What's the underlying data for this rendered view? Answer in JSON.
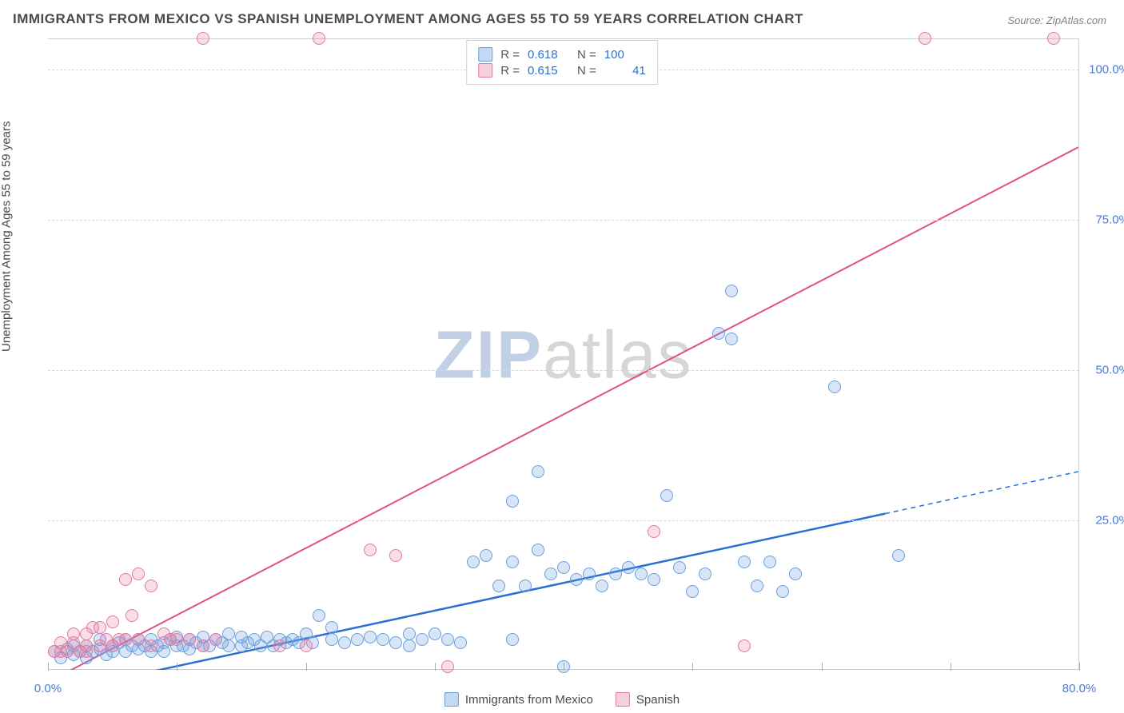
{
  "title": "IMMIGRANTS FROM MEXICO VS SPANISH UNEMPLOYMENT AMONG AGES 55 TO 59 YEARS CORRELATION CHART",
  "source_label": "Source:",
  "source_value": "ZipAtlas.com",
  "ylabel": "Unemployment Among Ages 55 to 59 years",
  "watermark_bold": "ZIP",
  "watermark_light": "atlas",
  "chart": {
    "type": "scatter",
    "background_color": "#ffffff",
    "grid_color": "#d8d8d8",
    "border_color": "#d0d0d0",
    "xlim": [
      0,
      80
    ],
    "ylim": [
      0,
      105
    ],
    "xticks": [
      0,
      10,
      20,
      30,
      40,
      50,
      60,
      70,
      80
    ],
    "xtick_labels": {
      "0": "0.0%",
      "80": "80.0%"
    },
    "yticks": [
      25,
      50,
      75,
      100
    ],
    "ytick_labels": {
      "25": "25.0%",
      "50": "50.0%",
      "75": "75.0%",
      "100": "100.0%"
    },
    "axis_label_fontsize": 15,
    "tick_label_color": "#4a7bd0",
    "series": [
      {
        "name": "Immigrants from Mexico",
        "color_fill": "rgba(110,160,225,0.28)",
        "color_stroke": "#6a9edb",
        "marker_size": 16,
        "R": "0.618",
        "N": "100",
        "trend": {
          "x1": 0,
          "y1": -4,
          "x2": 65,
          "y2": 26,
          "x2_ext": 80,
          "y2_ext": 33,
          "color": "#2b6fd4",
          "width": 2.5,
          "dash_tail": true
        },
        "points": [
          [
            0.5,
            3
          ],
          [
            1,
            2
          ],
          [
            1.5,
            3.5
          ],
          [
            2,
            2.5
          ],
          [
            2,
            4
          ],
          [
            2.5,
            3
          ],
          [
            3,
            2
          ],
          [
            3,
            4
          ],
          [
            3.5,
            3
          ],
          [
            4,
            3.5
          ],
          [
            4,
            5
          ],
          [
            4.5,
            2.5
          ],
          [
            5,
            4
          ],
          [
            5,
            3
          ],
          [
            5.5,
            4.5
          ],
          [
            6,
            3
          ],
          [
            6,
            5
          ],
          [
            6.5,
            4
          ],
          [
            7,
            3.5
          ],
          [
            7,
            5
          ],
          [
            7.5,
            4
          ],
          [
            8,
            3
          ],
          [
            8,
            5
          ],
          [
            8.5,
            4
          ],
          [
            9,
            4.5
          ],
          [
            9,
            3
          ],
          [
            9.5,
            5
          ],
          [
            10,
            4
          ],
          [
            10,
            5.5
          ],
          [
            10.5,
            4
          ],
          [
            11,
            3.5
          ],
          [
            11,
            5
          ],
          [
            11.5,
            4.5
          ],
          [
            12,
            4
          ],
          [
            12,
            5.5
          ],
          [
            12.5,
            4
          ],
          [
            13,
            5
          ],
          [
            13.5,
            4.5
          ],
          [
            14,
            4
          ],
          [
            14,
            6
          ],
          [
            15,
            4
          ],
          [
            15,
            5.5
          ],
          [
            15.5,
            4.5
          ],
          [
            16,
            5
          ],
          [
            16.5,
            4
          ],
          [
            17,
            5.5
          ],
          [
            17.5,
            4
          ],
          [
            18,
            5
          ],
          [
            18.5,
            4.5
          ],
          [
            19,
            5
          ],
          [
            19.5,
            4.5
          ],
          [
            20,
            6
          ],
          [
            20.5,
            4.5
          ],
          [
            21,
            9
          ],
          [
            22,
            5
          ],
          [
            22,
            7
          ],
          [
            23,
            4.5
          ],
          [
            24,
            5
          ],
          [
            25,
            5.5
          ],
          [
            26,
            5
          ],
          [
            27,
            4.5
          ],
          [
            28,
            6
          ],
          [
            28,
            4
          ],
          [
            29,
            5
          ],
          [
            30,
            6
          ],
          [
            31,
            5
          ],
          [
            32,
            4.5
          ],
          [
            33,
            18
          ],
          [
            34,
            19
          ],
          [
            35,
            14
          ],
          [
            36,
            18
          ],
          [
            36,
            28
          ],
          [
            36,
            5
          ],
          [
            37,
            14
          ],
          [
            38,
            20
          ],
          [
            38,
            33
          ],
          [
            39,
            16
          ],
          [
            40,
            17
          ],
          [
            40,
            0.5
          ],
          [
            41,
            15
          ],
          [
            42,
            16
          ],
          [
            43,
            14
          ],
          [
            44,
            16
          ],
          [
            45,
            17
          ],
          [
            46,
            16
          ],
          [
            47,
            15
          ],
          [
            48,
            29
          ],
          [
            49,
            17
          ],
          [
            50,
            13
          ],
          [
            51,
            16
          ],
          [
            52,
            56
          ],
          [
            53,
            55
          ],
          [
            53,
            63
          ],
          [
            54,
            18
          ],
          [
            55,
            14
          ],
          [
            56,
            18
          ],
          [
            57,
            13
          ],
          [
            58,
            16
          ],
          [
            61,
            47
          ],
          [
            66,
            19
          ]
        ]
      },
      {
        "name": "Spanish",
        "color_fill": "rgba(230,120,160,0.25)",
        "color_stroke": "#e378a0",
        "marker_size": 16,
        "R": "0.615",
        "N": "41",
        "trend": {
          "x1": 0,
          "y1": -2,
          "x2": 80,
          "y2": 87,
          "color": "#e05088",
          "width": 2,
          "dash_tail": false
        },
        "points": [
          [
            0.5,
            3
          ],
          [
            1,
            3
          ],
          [
            1,
            4.5
          ],
          [
            1.5,
            3
          ],
          [
            2,
            4.5
          ],
          [
            2,
            6
          ],
          [
            2.5,
            3
          ],
          [
            3,
            4
          ],
          [
            3,
            6
          ],
          [
            3,
            3
          ],
          [
            3.5,
            7
          ],
          [
            4,
            4
          ],
          [
            4,
            7
          ],
          [
            4.5,
            5
          ],
          [
            5,
            4
          ],
          [
            5,
            8
          ],
          [
            5.5,
            5
          ],
          [
            6,
            15
          ],
          [
            6,
            5
          ],
          [
            6.5,
            9
          ],
          [
            7,
            16
          ],
          [
            7,
            5
          ],
          [
            8,
            14
          ],
          [
            8,
            4
          ],
          [
            9,
            6
          ],
          [
            9.5,
            5
          ],
          [
            10,
            5
          ],
          [
            11,
            5
          ],
          [
            12,
            4
          ],
          [
            13,
            5
          ],
          [
            18,
            4
          ],
          [
            20,
            4
          ],
          [
            25,
            20
          ],
          [
            27,
            19
          ],
          [
            31,
            0.5
          ],
          [
            47,
            23
          ],
          [
            54,
            4
          ],
          [
            12,
            105
          ],
          [
            21,
            105
          ],
          [
            68,
            105
          ],
          [
            78,
            105
          ]
        ]
      }
    ]
  },
  "legend_top": {
    "r_label": "R =",
    "n_label": "N ="
  },
  "legend_bottom": {
    "items": [
      "Immigrants from Mexico",
      "Spanish"
    ]
  }
}
